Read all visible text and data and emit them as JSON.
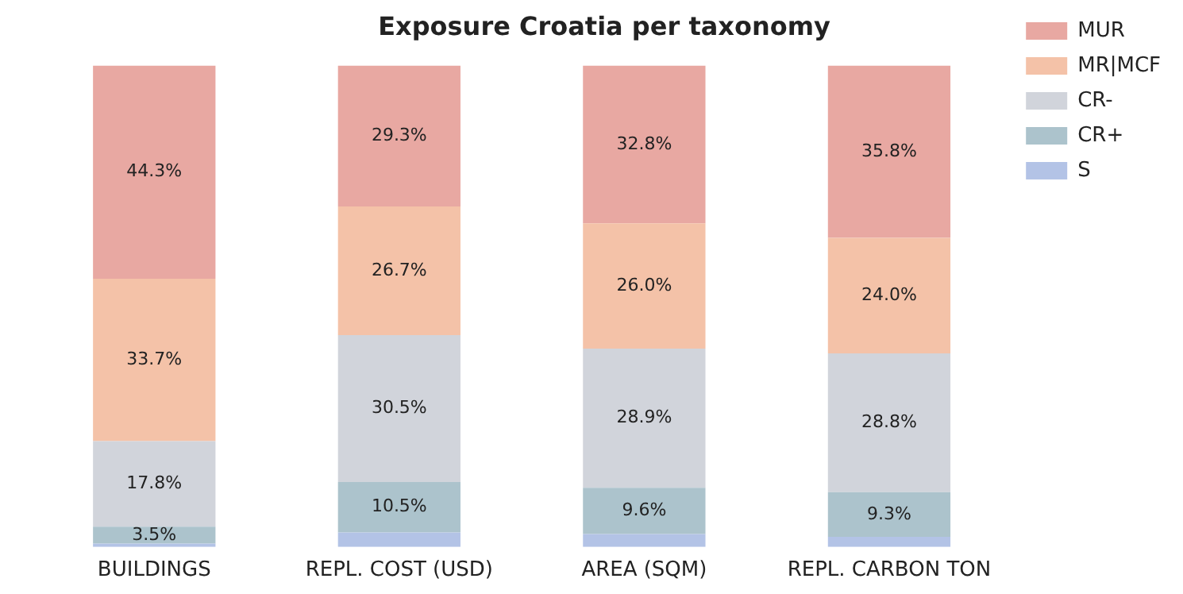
{
  "chart_data": {
    "type": "bar",
    "title": "Exposure Croatia per taxonomy",
    "stacked": true,
    "legend": "top right",
    "tick_labels": "x",
    "ylim": [
      0,
      100
    ],
    "categories": [
      "BUILDINGS",
      "REPL. COST (USD)",
      "AREA (SQM)",
      "REPL. CARBON TON"
    ],
    "series": [
      {
        "name": "S",
        "color": "#b3c3e6",
        "values": [
          0.7,
          3.0,
          2.7,
          2.1
        ],
        "value_labels": [
          null,
          null,
          null,
          null
        ]
      },
      {
        "name": "CR+",
        "color": "#acc3cc",
        "values": [
          3.5,
          10.5,
          9.6,
          9.3
        ],
        "value_labels": [
          "3.5%",
          "10.5%",
          "9.6%",
          "9.3%"
        ]
      },
      {
        "name": "CR-",
        "color": "#d1d4db",
        "values": [
          17.8,
          30.5,
          28.9,
          28.8
        ],
        "value_labels": [
          "17.8%",
          "30.5%",
          "28.9%",
          "28.8%"
        ]
      },
      {
        "name": "MR|MCF",
        "color": "#f4c2a8",
        "values": [
          33.7,
          26.7,
          26.0,
          24.0
        ],
        "value_labels": [
          "33.7%",
          "26.7%",
          "26.0%",
          "24.0%"
        ]
      },
      {
        "name": "MUR",
        "color": "#e8a8a2",
        "values": [
          44.3,
          29.3,
          32.8,
          35.8
        ],
        "value_labels": [
          "44.3%",
          "29.3%",
          "32.8%",
          "35.8%"
        ]
      }
    ]
  }
}
